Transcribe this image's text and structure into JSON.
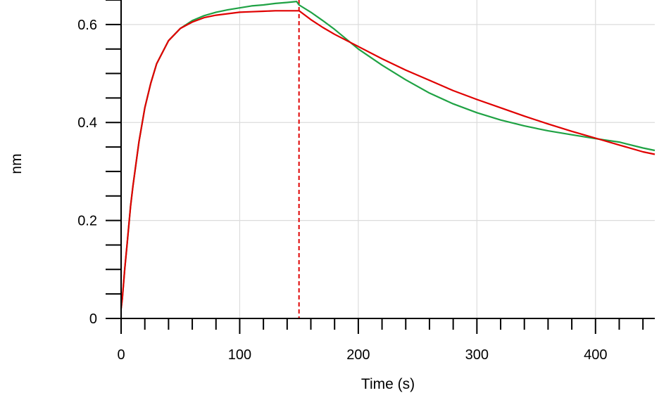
{
  "chart_data": {
    "type": "line",
    "xlabel": "Time (s)",
    "ylabel": "nm",
    "xlim": [
      0,
      450
    ],
    "ylim": [
      0,
      0.65
    ],
    "x_ticks": [
      0,
      100,
      200,
      300,
      400
    ],
    "x_minor_step": 20,
    "y_ticks": [
      0,
      0.2,
      0.4,
      0.6
    ],
    "y_tick_labels": [
      "0",
      "0.2",
      "0.4",
      "0.6"
    ],
    "y_minor_step": 0.05,
    "grid": true,
    "vertical_markers": [
      {
        "x": 0,
        "color": "#e00000",
        "style": "dashed"
      },
      {
        "x": 150,
        "color": "#e00000",
        "style": "dashed"
      }
    ],
    "series": [
      {
        "color": "#1fa244",
        "x": [
          0,
          1,
          3,
          5,
          8,
          10,
          15,
          20,
          25,
          30,
          40,
          50,
          60,
          70,
          80,
          90,
          100,
          110,
          120,
          130,
          140,
          148,
          150,
          160,
          170,
          180,
          200,
          220,
          240,
          260,
          280,
          300,
          320,
          340,
          360,
          380,
          400,
          420,
          440,
          450
        ],
        "y": [
          0.02,
          0.04,
          0.1,
          0.15,
          0.23,
          0.27,
          0.36,
          0.43,
          0.48,
          0.52,
          0.567,
          0.592,
          0.608,
          0.618,
          0.625,
          0.63,
          0.634,
          0.638,
          0.64,
          0.643,
          0.645,
          0.647,
          0.64,
          0.625,
          0.608,
          0.59,
          0.55,
          0.517,
          0.487,
          0.46,
          0.438,
          0.42,
          0.405,
          0.393,
          0.383,
          0.375,
          0.367,
          0.36,
          0.348,
          0.343
        ]
      },
      {
        "color": "#e00000",
        "x": [
          0,
          1,
          3,
          5,
          8,
          10,
          15,
          20,
          25,
          30,
          40,
          50,
          60,
          70,
          80,
          90,
          100,
          110,
          120,
          130,
          140,
          150,
          160,
          170,
          180,
          200,
          220,
          240,
          260,
          280,
          300,
          320,
          340,
          360,
          380,
          400,
          420,
          440,
          450
        ],
        "y": [
          0.02,
          0.04,
          0.1,
          0.15,
          0.23,
          0.27,
          0.36,
          0.43,
          0.48,
          0.52,
          0.567,
          0.592,
          0.605,
          0.614,
          0.619,
          0.622,
          0.625,
          0.626,
          0.627,
          0.628,
          0.628,
          0.628,
          0.61,
          0.594,
          0.58,
          0.555,
          0.53,
          0.507,
          0.486,
          0.465,
          0.447,
          0.43,
          0.413,
          0.397,
          0.382,
          0.368,
          0.354,
          0.34,
          0.335
        ]
      }
    ]
  }
}
